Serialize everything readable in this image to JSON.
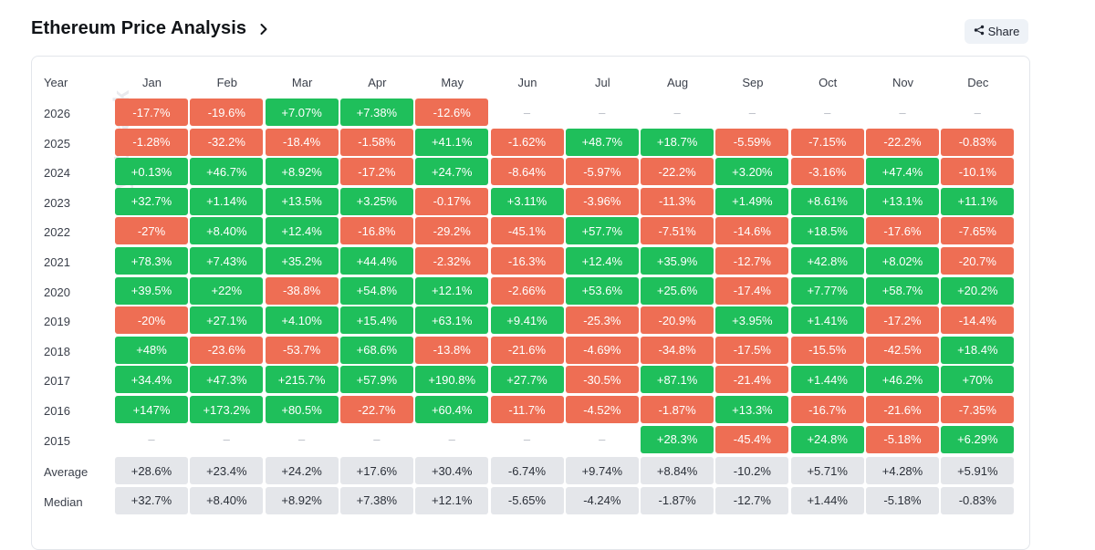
{
  "header": {
    "title": "Ethereum Price Analysis",
    "share_label": "Share"
  },
  "watermark": "cryptorank",
  "colors": {
    "positive": "#1fbf5b",
    "negative": "#ee6e54",
    "stat": "#e4e6ea"
  },
  "chart_data": {
    "type": "heatmap",
    "corner_label": "Year",
    "columns": [
      "Jan",
      "Feb",
      "Mar",
      "Apr",
      "May",
      "Jun",
      "Jul",
      "Aug",
      "Sep",
      "Oct",
      "Nov",
      "Dec"
    ],
    "rows": [
      {
        "label": "2026",
        "values": [
          "-17.7%",
          "-19.6%",
          "+7.07%",
          "+7.38%",
          "-12.6%",
          "–",
          "–",
          "–",
          "–",
          "–",
          "–",
          "–"
        ]
      },
      {
        "label": "2025",
        "values": [
          "-1.28%",
          "-32.2%",
          "-18.4%",
          "-1.58%",
          "+41.1%",
          "-1.62%",
          "+48.7%",
          "+18.7%",
          "-5.59%",
          "-7.15%",
          "-22.2%",
          "-0.83%"
        ]
      },
      {
        "label": "2024",
        "values": [
          "+0.13%",
          "+46.7%",
          "+8.92%",
          "-17.2%",
          "+24.7%",
          "-8.64%",
          "-5.97%",
          "-22.2%",
          "+3.20%",
          "-3.16%",
          "+47.4%",
          "-10.1%"
        ]
      },
      {
        "label": "2023",
        "values": [
          "+32.7%",
          "+1.14%",
          "+13.5%",
          "+3.25%",
          "-0.17%",
          "+3.11%",
          "-3.96%",
          "-11.3%",
          "+1.49%",
          "+8.61%",
          "+13.1%",
          "+11.1%"
        ]
      },
      {
        "label": "2022",
        "values": [
          "-27%",
          "+8.40%",
          "+12.4%",
          "-16.8%",
          "-29.2%",
          "-45.1%",
          "+57.7%",
          "-7.51%",
          "-14.6%",
          "+18.5%",
          "-17.6%",
          "-7.65%"
        ]
      },
      {
        "label": "2021",
        "values": [
          "+78.3%",
          "+7.43%",
          "+35.2%",
          "+44.4%",
          "-2.32%",
          "-16.3%",
          "+12.4%",
          "+35.9%",
          "-12.7%",
          "+42.8%",
          "+8.02%",
          "-20.7%"
        ]
      },
      {
        "label": "2020",
        "values": [
          "+39.5%",
          "+22%",
          "-38.8%",
          "+54.8%",
          "+12.1%",
          "-2.66%",
          "+53.6%",
          "+25.6%",
          "-17.4%",
          "+7.77%",
          "+58.7%",
          "+20.2%"
        ]
      },
      {
        "label": "2019",
        "values": [
          "-20%",
          "+27.1%",
          "+4.10%",
          "+15.4%",
          "+63.1%",
          "+9.41%",
          "-25.3%",
          "-20.9%",
          "+3.95%",
          "+1.41%",
          "-17.2%",
          "-14.4%"
        ]
      },
      {
        "label": "2018",
        "values": [
          "+48%",
          "-23.6%",
          "-53.7%",
          "+68.6%",
          "-13.8%",
          "-21.6%",
          "-4.69%",
          "-34.8%",
          "-17.5%",
          "-15.5%",
          "-42.5%",
          "+18.4%"
        ]
      },
      {
        "label": "2017",
        "values": [
          "+34.4%",
          "+47.3%",
          "+215.7%",
          "+57.9%",
          "+190.8%",
          "+27.7%",
          "-30.5%",
          "+87.1%",
          "-21.4%",
          "+1.44%",
          "+46.2%",
          "+70%"
        ]
      },
      {
        "label": "2016",
        "values": [
          "+147%",
          "+173.2%",
          "+80.5%",
          "-22.7%",
          "+60.4%",
          "-11.7%",
          "-4.52%",
          "-1.87%",
          "+13.3%",
          "-16.7%",
          "-21.6%",
          "-7.35%"
        ]
      },
      {
        "label": "2015",
        "values": [
          "–",
          "–",
          "–",
          "–",
          "–",
          "–",
          "–",
          "+28.3%",
          "-45.4%",
          "+24.8%",
          "-5.18%",
          "+6.29%"
        ]
      }
    ],
    "stats": [
      {
        "label": "Average",
        "values": [
          "+28.6%",
          "+23.4%",
          "+24.2%",
          "+17.6%",
          "+30.4%",
          "-6.74%",
          "+9.74%",
          "+8.84%",
          "-10.2%",
          "+5.71%",
          "+4.28%",
          "+5.91%"
        ]
      },
      {
        "label": "Median",
        "values": [
          "+32.7%",
          "+8.40%",
          "+8.92%",
          "+7.38%",
          "+12.1%",
          "-5.65%",
          "-4.24%",
          "-1.87%",
          "-12.7%",
          "+1.44%",
          "-5.18%",
          "-0.83%"
        ]
      }
    ]
  }
}
